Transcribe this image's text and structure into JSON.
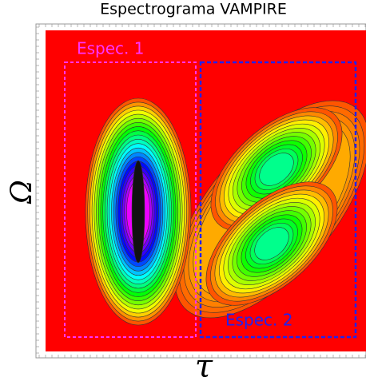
{
  "chart_data": {
    "type": "contour",
    "title": "Espectrograma VAMPIRE",
    "xlabel": "τ",
    "ylabel": "Ω",
    "annotations": [
      {
        "text": "Espec. 1",
        "color": "#ff33ff"
      },
      {
        "text": "Espec. 2",
        "color": "#2222ee"
      }
    ]
  }
}
